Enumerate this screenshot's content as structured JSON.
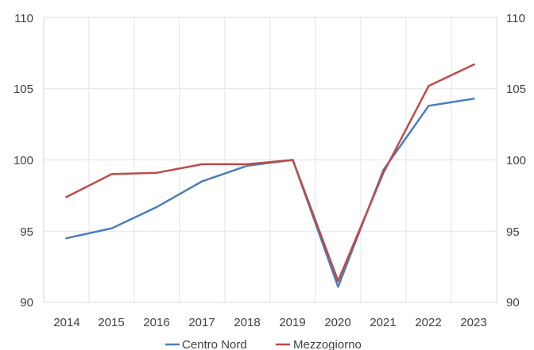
{
  "chart_data": {
    "type": "line",
    "x": [
      "2014",
      "2015",
      "2016",
      "2017",
      "2018",
      "2019",
      "2020",
      "2021",
      "2022",
      "2023"
    ],
    "series": [
      {
        "name": "Centro Nord",
        "color": "#4a7ebb",
        "values": [
          94.5,
          95.2,
          96.7,
          98.5,
          99.6,
          100.0,
          91.1,
          99.3,
          103.8,
          104.3
        ]
      },
      {
        "name": "Mezzogiorno",
        "color": "#be4b48",
        "values": [
          97.4,
          99.0,
          99.1,
          99.7,
          99.7,
          100.0,
          91.5,
          99.1,
          105.2,
          106.7
        ]
      }
    ],
    "ylim": [
      90,
      110
    ],
    "yticks": [
      "110",
      "105",
      "100",
      "95",
      "90"
    ],
    "grid": true,
    "legend_position": "bottom",
    "title": "",
    "xlabel": "",
    "ylabel": ""
  }
}
